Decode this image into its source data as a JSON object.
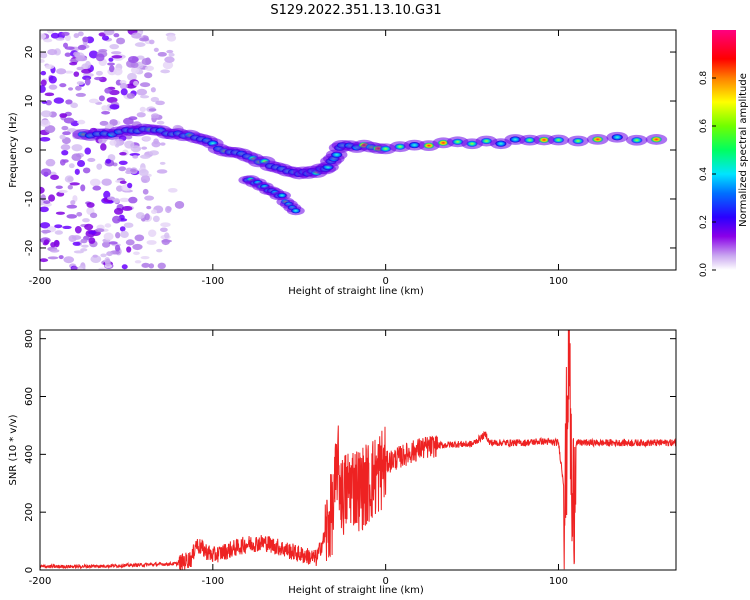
{
  "title": "S129.2022.351.13.10.G31",
  "chart_data": [
    {
      "type": "heatmap",
      "xlabel": "Height of straight line (km)",
      "ylabel": "Frequency (Hz)",
      "xlim": [
        -200,
        168
      ],
      "ylim": [
        -24.5,
        24.5
      ],
      "x_ticks": [
        -200,
        -100,
        0,
        100
      ],
      "y_ticks": [
        -20,
        -10,
        0,
        10,
        20
      ],
      "grid": false,
      "colorscale": "rainbow",
      "colorbar": {
        "label": "Normalized spectral amplitude",
        "range": [
          0.0,
          1.0
        ],
        "ticks": [
          0.0,
          0.2,
          0.4,
          0.6,
          0.8
        ]
      },
      "features": {
        "dominant_track": [
          {
            "x": -175,
            "y": 3.0
          },
          {
            "x": -150,
            "y": 3.8
          },
          {
            "x": -130,
            "y": 4.0
          },
          {
            "x": -110,
            "y": 2.5
          },
          {
            "x": -90,
            "y": -0.5
          },
          {
            "x": -70,
            "y": -2.5
          },
          {
            "x": -50,
            "y": -5.0
          },
          {
            "x": -35,
            "y": -4.0
          },
          {
            "x": -25,
            "y": 1.0
          },
          {
            "x": 0,
            "y": 0.6
          },
          {
            "x": 50,
            "y": 1.5
          },
          {
            "x": 100,
            "y": 2.0
          },
          {
            "x": 168,
            "y": 2.5
          }
        ],
        "secondary_branch": [
          {
            "x": -80,
            "y": -6.0
          },
          {
            "x": -70,
            "y": -7.5
          },
          {
            "x": -60,
            "y": -9.5
          },
          {
            "x": -50,
            "y": -13.0
          }
        ],
        "noise_region_x": [
          -200,
          -118
        ]
      }
    },
    {
      "type": "line",
      "xlabel": "Height of straight line (km)",
      "ylabel": "SNR (10 * v/v)",
      "xlim": [
        -200,
        168
      ],
      "ylim": [
        0,
        830
      ],
      "x_ticks": [
        -200,
        -100,
        0,
        100
      ],
      "y_ticks": [
        0,
        200,
        400,
        600,
        800
      ],
      "grid": false,
      "color": "#ee2222",
      "series": [
        {
          "x": [
            -200,
            -180,
            -160,
            -140,
            -120,
            -112,
            -110,
            -100,
            -90,
            -80,
            -70,
            -60,
            -50,
            -40,
            -35,
            -30,
            -28,
            -25,
            -20,
            -15,
            -10,
            -5,
            0,
            10,
            20,
            30,
            40,
            50,
            58,
            60,
            70,
            80,
            90,
            100,
            104,
            106,
            108,
            110,
            120,
            140,
            160,
            168
          ],
          "y": [
            12,
            12,
            14,
            18,
            22,
            40,
            90,
            50,
            70,
            90,
            95,
            75,
            55,
            40,
            120,
            220,
            380,
            250,
            300,
            280,
            300,
            330,
            370,
            395,
            420,
            430,
            435,
            435,
            470,
            440,
            440,
            440,
            445,
            440,
            250,
            820,
            140,
            440,
            440,
            440,
            440,
            440
          ]
        }
      ]
    }
  ]
}
